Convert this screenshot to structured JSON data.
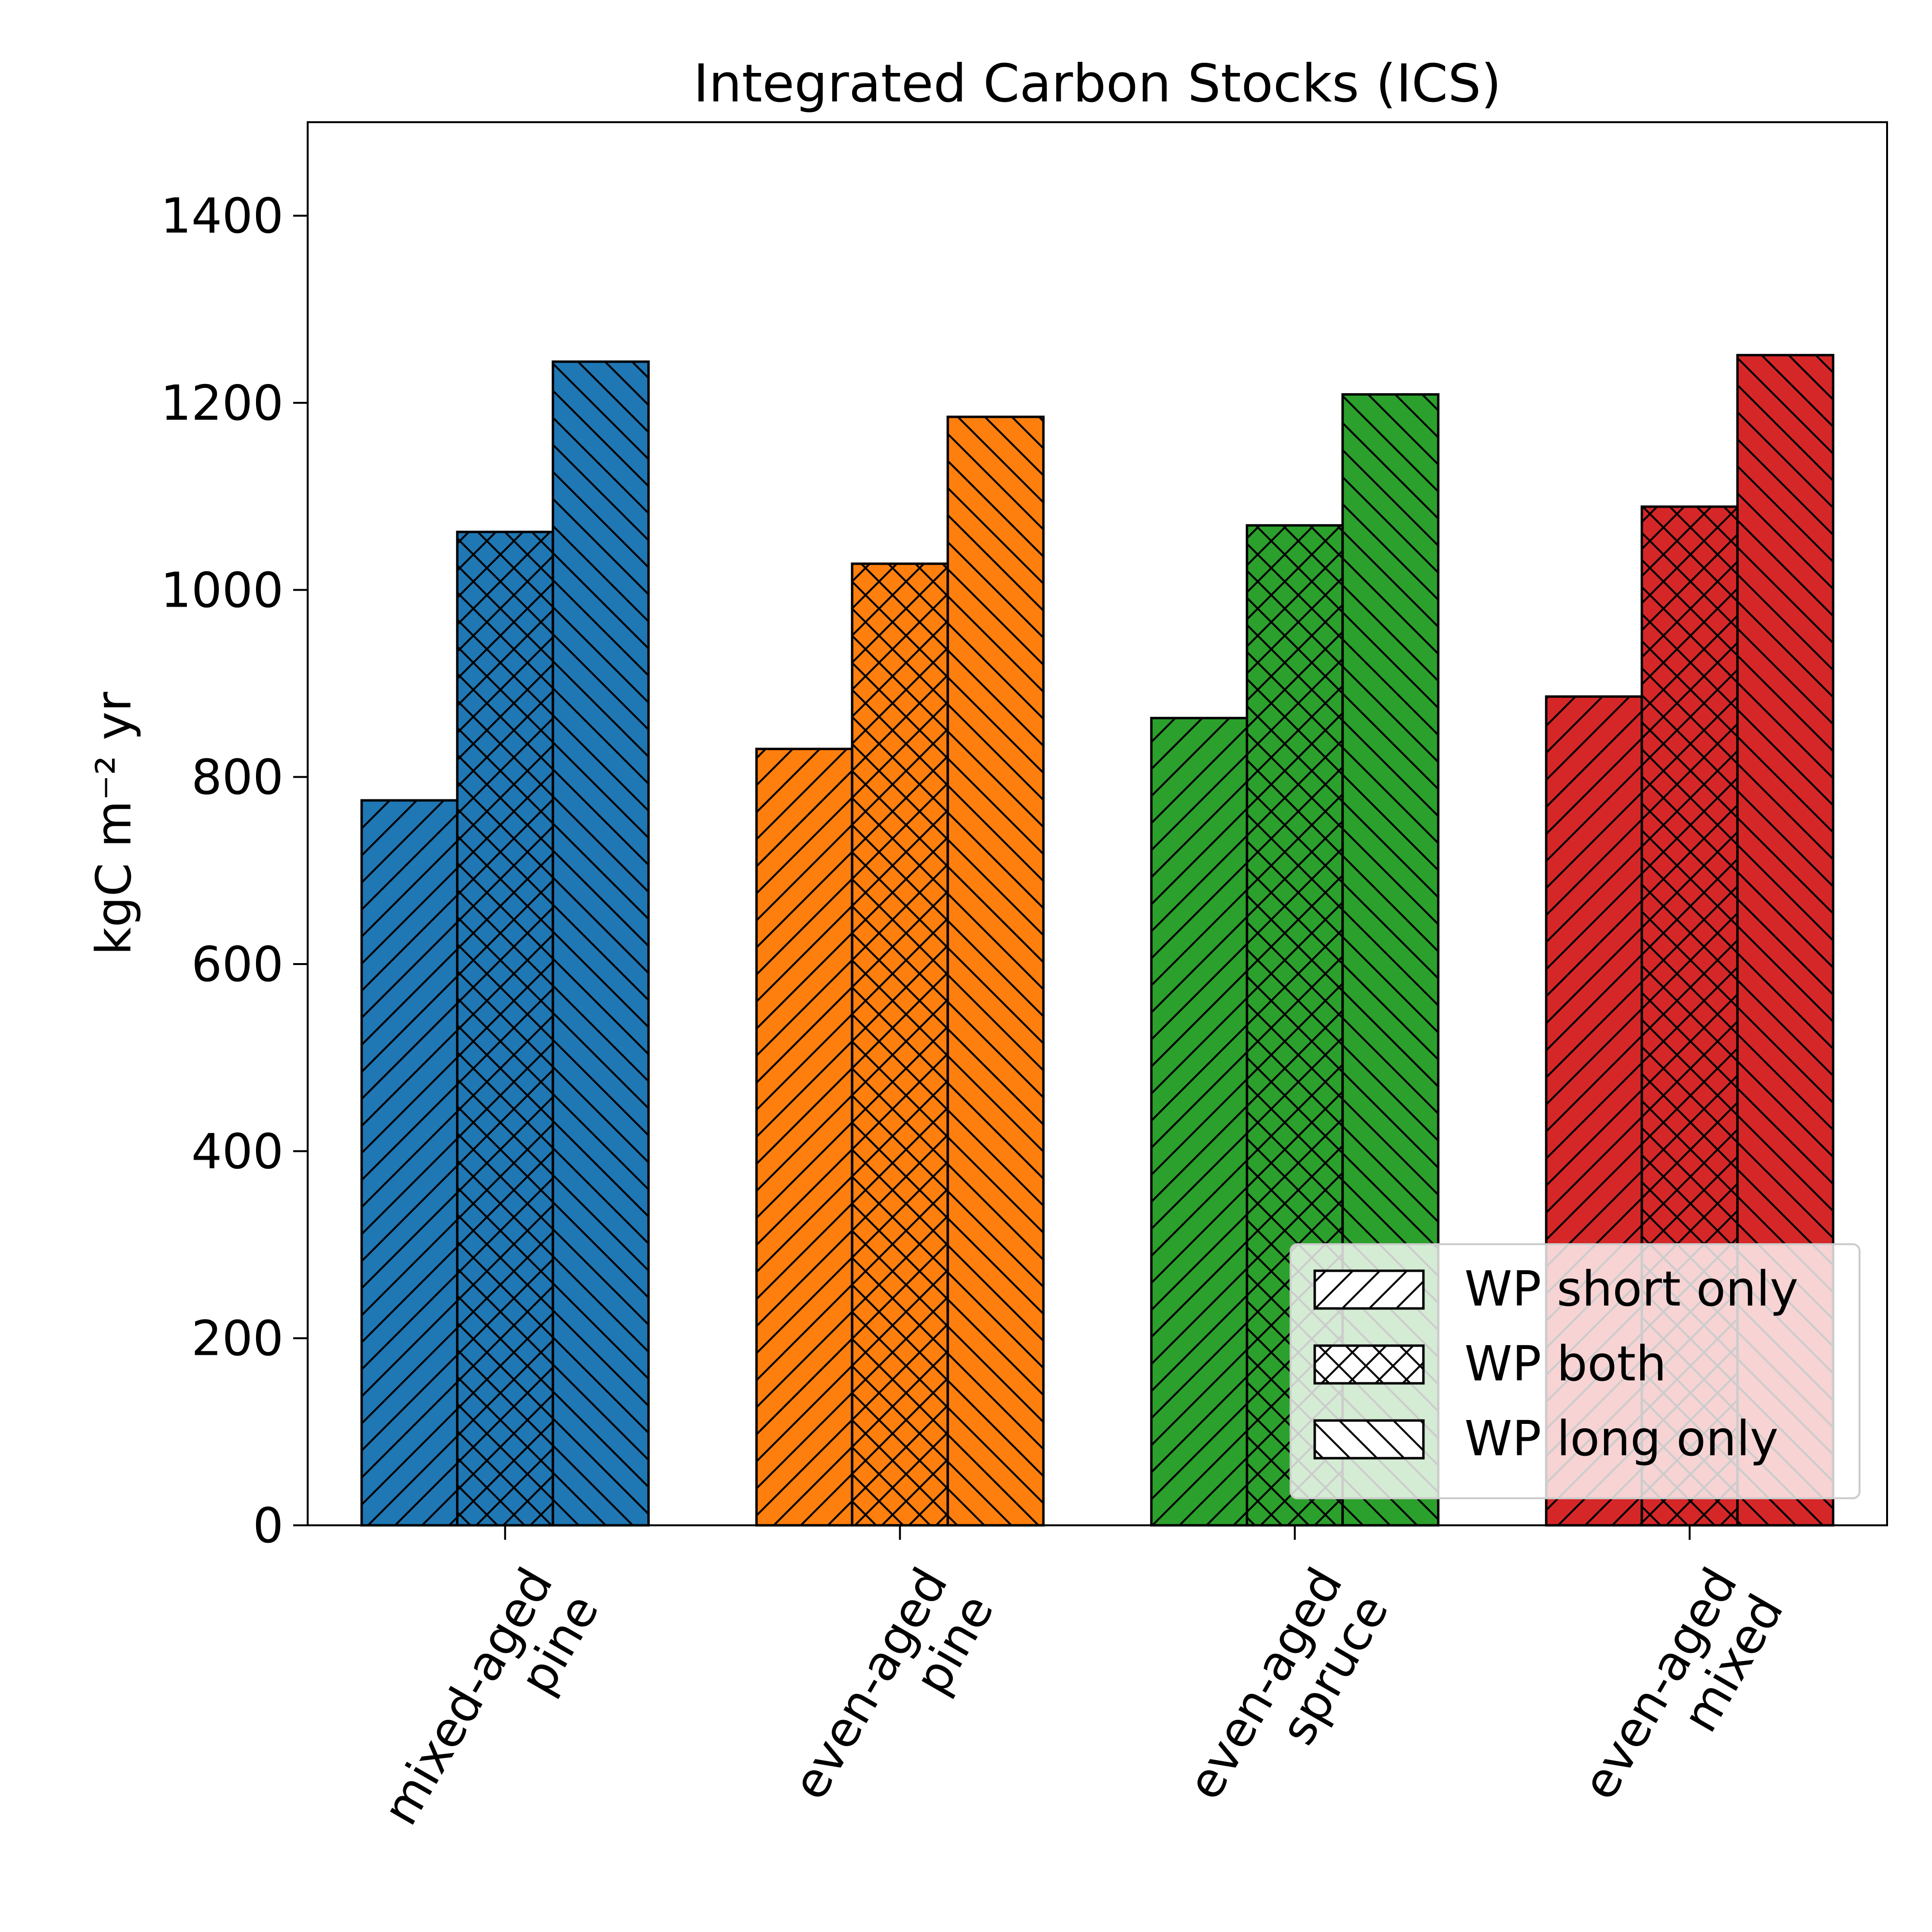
{
  "chart_data": {
    "type": "bar",
    "title": "Integrated Carbon Stocks (ICS)",
    "ylabel": "kgC m⁻² yr",
    "xlabel": "",
    "ylim": [
      0,
      1500
    ],
    "yticks": [
      0,
      200,
      400,
      600,
      800,
      1000,
      1200,
      1400
    ],
    "categories": [
      [
        "mixed-aged",
        "pine"
      ],
      [
        "even-aged",
        "pine"
      ],
      [
        "even-aged",
        "spruce"
      ],
      [
        "even-aged",
        "mixed"
      ]
    ],
    "category_colors": [
      "#1f77b4",
      "#ff7f0e",
      "#2ca02c",
      "#d62728"
    ],
    "series": [
      {
        "name": "WP short only",
        "hatch": "forward",
        "values": [
          775,
          830,
          863,
          886
        ]
      },
      {
        "name": "WP both",
        "hatch": "cross",
        "values": [
          1062,
          1028,
          1069,
          1089
        ]
      },
      {
        "name": "WP long only",
        "hatch": "back",
        "values": [
          1244,
          1185,
          1209,
          1251
        ]
      }
    ],
    "legend_position": "lower-right",
    "grid": false
  }
}
